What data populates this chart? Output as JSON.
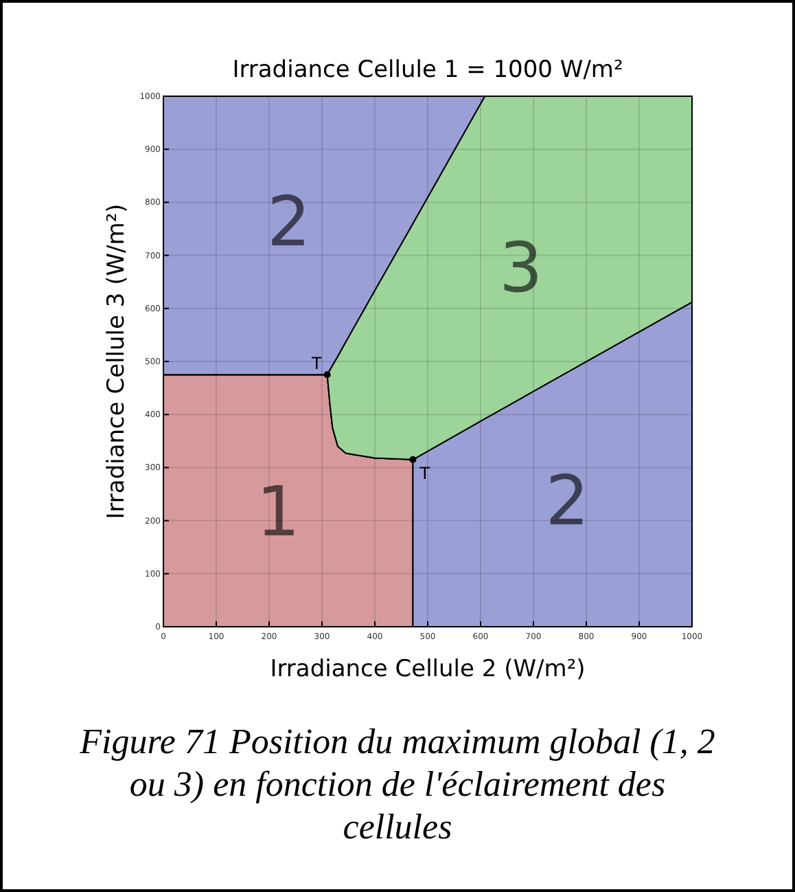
{
  "chart_data": {
    "type": "area",
    "stacked": true,
    "title": "Irradiance Cellule 1 = 1000 W/m²",
    "xlabel": "Irradiance Cellule 2 (W/m²)",
    "ylabel": "Irradiance Cellule 3 (W/m²)",
    "xlim": [
      0,
      1000
    ],
    "ylim": [
      0,
      1000
    ],
    "xticks": [
      0,
      100,
      200,
      300,
      400,
      500,
      600,
      700,
      800,
      900,
      1000
    ],
    "yticks": [
      0,
      100,
      200,
      300,
      400,
      500,
      600,
      700,
      800,
      900,
      1000
    ],
    "grid": true,
    "x": [
      0,
      310,
      315,
      320,
      330,
      345,
      400,
      472,
      472,
      608,
      1000
    ],
    "series": [
      {
        "name": "1",
        "color": "#d69a9c",
        "values": [
          475,
          475,
          420,
          375,
          340,
          327,
          318,
          315,
          0,
          0,
          0
        ]
      },
      {
        "name": "2",
        "color": "#9a9fd6",
        "values": [
          0,
          0,
          0,
          0,
          0,
          0,
          0,
          0,
          315,
          392,
          612
        ]
      },
      {
        "name": "3",
        "color": "#9dd49a",
        "values": [
          0,
          0,
          64,
          118,
          170,
          210,
          316,
          445,
          445,
          608,
          388
        ]
      },
      {
        "name": "2",
        "color": "#9a9fd6",
        "values": [
          525,
          525,
          516,
          507,
          490,
          463,
          366,
          240,
          240,
          0,
          0
        ]
      },
      {
        "type": "scatter",
        "color": "#000000",
        "marker": "circle",
        "x": [
          310,
          472
        ],
        "values": [
          475,
          315
        ]
      }
    ],
    "annotations": [
      {
        "text": "T",
        "x": 310,
        "y": 475
      },
      {
        "text": "T",
        "x": 472,
        "y": 315
      },
      "Figure 71 Position du maximum global (1, 2 ou 3) en fonction de l'éclairement des cellules"
    ]
  }
}
